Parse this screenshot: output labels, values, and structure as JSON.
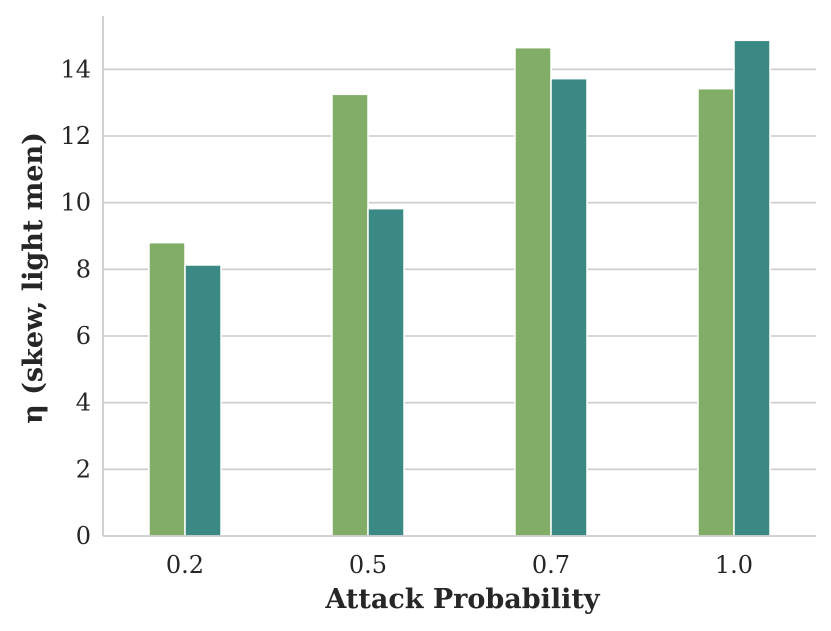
{
  "chart_data": {
    "type": "bar",
    "title": "",
    "xlabel": "Attack Probability",
    "ylabel": "η (skew, light men)",
    "categories": [
      "0.2",
      "0.5",
      "0.7",
      "1.0"
    ],
    "series": [
      {
        "values": [
          8.8,
          13.25,
          14.65,
          13.42
        ],
        "color": "#82ad66"
      },
      {
        "values": [
          8.13,
          9.82,
          13.72,
          14.87
        ],
        "color": "#3a8984"
      }
    ],
    "ylim": [
      0,
      15.6
    ],
    "yticks": [
      0,
      2,
      4,
      6,
      8,
      10,
      12,
      14
    ],
    "grid": "horizontal",
    "legend": "none"
  }
}
